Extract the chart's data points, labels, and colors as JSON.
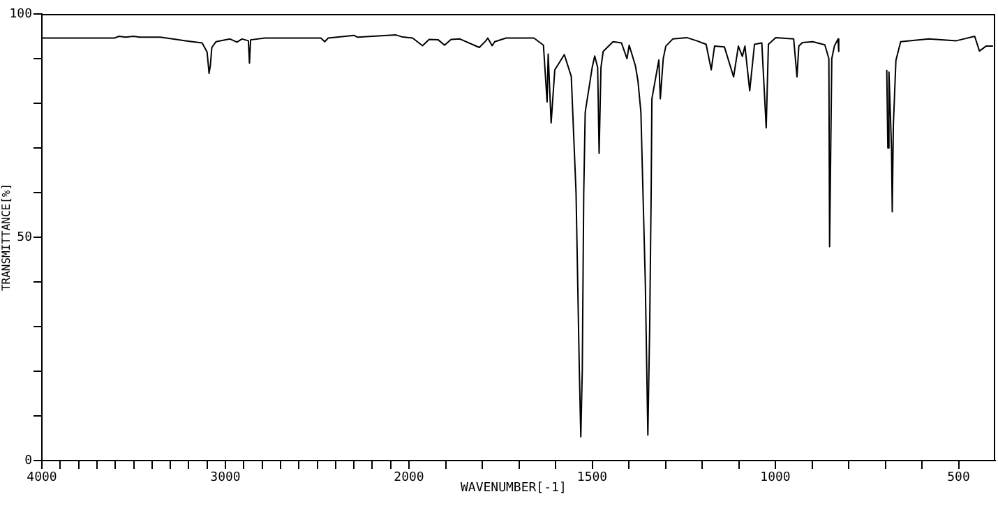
{
  "chart_data": [
    {
      "type": "line",
      "ylabel": "TRANSMITTANCE[%]",
      "color": "#000000",
      "x": [
        4000,
        3605,
        3580,
        3544,
        3500,
        3468,
        3355,
        3218,
        3127,
        3100,
        3089,
        3082,
        3074,
        3051,
        2975,
        2937,
        2910,
        2875,
        2869,
        2863,
        2785,
        2480,
        2459,
        2440,
        2299,
        2280,
        2071,
        2040,
        2000
      ],
      "values": [
        94.6,
        94.6,
        95.0,
        94.8,
        95.0,
        94.8,
        94.8,
        94.0,
        93.5,
        91.5,
        86.7,
        88.5,
        92.5,
        93.8,
        94.4,
        93.7,
        94.4,
        94.0,
        89.0,
        94.2,
        94.6,
        94.6,
        93.8,
        94.6,
        95.2,
        94.8,
        95.3,
        94.9,
        94.7
      ],
      "xlim": [
        4000,
        2000
      ],
      "xticks": [
        4000,
        {
          "value": 3900,
          "label": null
        },
        {
          "value": 3800,
          "label": null
        },
        {
          "value": 3700,
          "label": null
        },
        {
          "value": 3600,
          "label": null
        },
        {
          "value": 3500,
          "label": null
        },
        {
          "value": 3400,
          "label": null
        },
        {
          "value": 3300,
          "label": null
        },
        {
          "value": 3200,
          "label": null
        },
        {
          "value": 3100,
          "label": null
        },
        3000,
        {
          "value": 2900,
          "label": null
        },
        {
          "value": 2800,
          "label": null
        },
        {
          "value": 2700,
          "label": null
        },
        {
          "value": 2600,
          "label": null
        },
        {
          "value": 2500,
          "label": null
        },
        {
          "value": 2400,
          "label": null
        },
        {
          "value": 2300,
          "label": null
        },
        {
          "value": 2200,
          "label": null
        },
        {
          "value": 2100,
          "label": null
        },
        2000
      ],
      "ylim": [
        0,
        100
      ],
      "yticks": [
        0,
        {
          "value": 10,
          "label": null
        },
        {
          "value": 20,
          "label": null
        },
        {
          "value": 30,
          "label": null
        },
        {
          "value": 40,
          "label": null
        },
        50,
        {
          "value": 60,
          "label": null
        },
        {
          "value": 70,
          "label": null
        },
        {
          "value": 80,
          "label": null
        },
        {
          "value": 90,
          "label": null
        },
        100
      ]
    },
    {
      "type": "line",
      "xlabel": "WAVENUMBER[-1]",
      "color": "#000000",
      "tick_labels": "x",
      "x": [
        2000,
        1990,
        1963,
        1945,
        1920,
        1903,
        1885,
        1861,
        1808,
        1790,
        1785,
        1773,
        1766,
        1735,
        1659,
        1633,
        1623,
        1620,
        1612,
        1602,
        1592,
        1576,
        1557,
        1544,
        1535,
        1531,
        1527,
        1523,
        1519,
        1500,
        1493,
        1485,
        1481,
        1476,
        1470,
        1443,
        1420,
        1405,
        1399,
        1382,
        1375,
        1367,
        1355,
        1348,
        1343,
        1339,
        1337,
        1318,
        1314,
        1306,
        1299,
        1280,
        1242,
        1215,
        1189,
        1175,
        1166,
        1139,
        1114,
        1101,
        1090,
        1083,
        1070,
        1057,
        1037,
        1025,
        1019,
        999,
        950,
        941,
        936,
        926,
        898,
        865,
        854,
        852,
        846,
        839,
        829,
        827,
        760,
        696,
        693,
        690,
        683,
        681,
        678,
        671,
        658,
        581,
        506,
        456,
        443,
        425,
        406
      ],
      "values": [
        94.7,
        94.6,
        92.9,
        94.3,
        94.2,
        93.0,
        94.3,
        94.4,
        92.5,
        94.0,
        94.6,
        92.9,
        93.8,
        94.6,
        94.6,
        93.0,
        80.3,
        91,
        75.6,
        87.5,
        88.8,
        90.9,
        86,
        60,
        20,
        5.3,
        20,
        60,
        78,
        88,
        90.6,
        88,
        68.8,
        88,
        91.6,
        93.8,
        93.5,
        90,
        93,
        88.4,
        85,
        78,
        40,
        5.7,
        30,
        60,
        81,
        89.7,
        81,
        90,
        92.8,
        94.4,
        94.7,
        94.0,
        93.2,
        87.5,
        92.8,
        92.6,
        85.9,
        92.8,
        90.5,
        92.8,
        82.8,
        93.2,
        93.5,
        74.5,
        93.2,
        94.7,
        94.4,
        85.9,
        92.8,
        93.6,
        93.8,
        93.1,
        90,
        47.9,
        90,
        92.8,
        94.4,
        91.6,
        null,
        87.5,
        70,
        87,
        70,
        55.7,
        75,
        89.6,
        93.8,
        94.4,
        94,
        95,
        91.7,
        92.8,
        92.8
      ],
      "xlim": [
        2000,
        400
      ],
      "xticks": [
        {
          "value": 1900,
          "label": null
        },
        {
          "value": 1800,
          "label": null
        },
        {
          "value": 1700,
          "label": null
        },
        {
          "value": 1600,
          "label": null
        },
        1500,
        {
          "value": 1400,
          "label": null
        },
        {
          "value": 1300,
          "label": null
        },
        {
          "value": 1200,
          "label": null
        },
        {
          "value": 1100,
          "label": null
        },
        1000,
        {
          "value": 900,
          "label": null
        },
        {
          "value": 800,
          "label": null
        },
        {
          "value": 700,
          "label": null
        },
        {
          "value": 600,
          "label": null
        },
        500
      ],
      "ylim": [
        0,
        100
      ]
    }
  ]
}
